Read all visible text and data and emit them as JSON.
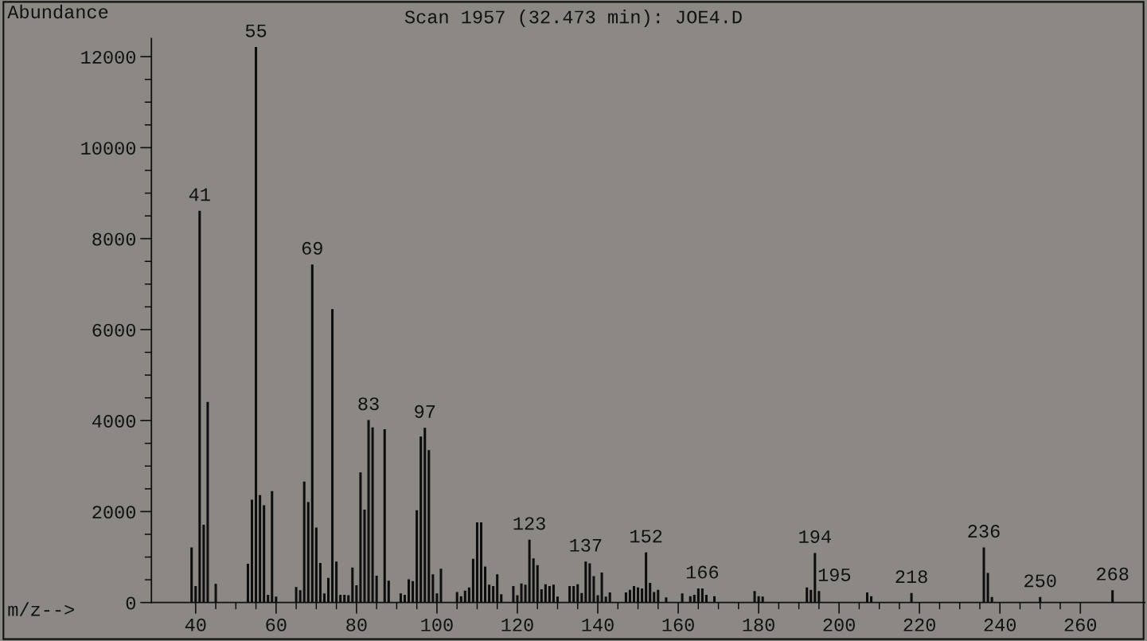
{
  "chart_data": {
    "type": "bar",
    "title": "Scan 1957 (32.473 min): JOE4.D",
    "xlabel": "m/z-->",
    "ylabel": "Abundance",
    "x": [
      39,
      40,
      41,
      42,
      43,
      45,
      53,
      54,
      55,
      56,
      57,
      58,
      59,
      60,
      65,
      66,
      67,
      68,
      69,
      70,
      71,
      72,
      73,
      74,
      75,
      76,
      77,
      78,
      79,
      80,
      81,
      82,
      83,
      84,
      85,
      87,
      88,
      91,
      92,
      93,
      94,
      95,
      96,
      97,
      98,
      99,
      100,
      101,
      105,
      106,
      107,
      108,
      109,
      110,
      111,
      112,
      113,
      114,
      115,
      116,
      119,
      120,
      121,
      122,
      123,
      124,
      125,
      126,
      127,
      128,
      129,
      130,
      133,
      134,
      135,
      136,
      137,
      138,
      139,
      140,
      141,
      142,
      143,
      147,
      148,
      149,
      150,
      151,
      152,
      153,
      154,
      155,
      157,
      161,
      163,
      164,
      165,
      166,
      167,
      169,
      179,
      180,
      181,
      192,
      193,
      194,
      195,
      207,
      208,
      218,
      236,
      237,
      238,
      250,
      268
    ],
    "values": [
      1200,
      350,
      8600,
      1700,
      4400,
      400,
      840,
      2250,
      12200,
      2350,
      2130,
      160,
      2440,
      120,
      330,
      260,
      2650,
      2200,
      7420,
      1640,
      860,
      190,
      530,
      6440,
      890,
      160,
      160,
      150,
      760,
      370,
      2850,
      2030,
      4000,
      3840,
      580,
      3800,
      470,
      190,
      160,
      500,
      460,
      2020,
      3640,
      3830,
      3340,
      610,
      190,
      730,
      220,
      130,
      250,
      320,
      950,
      1750,
      1750,
      780,
      380,
      350,
      610,
      170,
      350,
      150,
      410,
      380,
      1370,
      960,
      810,
      280,
      390,
      350,
      380,
      120,
      350,
      350,
      390,
      200,
      890,
      850,
      570,
      150,
      650,
      120,
      210,
      210,
      270,
      350,
      320,
      300,
      1090,
      420,
      220,
      270,
      100,
      190,
      130,
      160,
      300,
      300,
      160,
      130,
      240,
      130,
      120,
      320,
      270,
      1080,
      240,
      210,
      130,
      200,
      1200,
      640,
      110,
      110,
      260
    ],
    "color": "#0d0d0d",
    "xlim": [
      29,
      276
    ],
    "xticks": [
      40,
      60,
      80,
      100,
      120,
      140,
      160,
      180,
      200,
      220,
      240,
      260
    ],
    "ylim": [
      0,
      12400
    ],
    "yticks": [
      0,
      2000,
      4000,
      6000,
      8000,
      10000,
      12000
    ],
    "annotations": [
      {
        "text": "41",
        "x": 41,
        "y": 8600
      },
      {
        "text": "55",
        "x": 55,
        "y": 12200
      },
      {
        "text": "69",
        "x": 69,
        "y": 7420
      },
      {
        "text": "83",
        "x": 83,
        "y": 4000
      },
      {
        "text": "97",
        "x": 97,
        "y": 3830
      },
      {
        "text": "123",
        "x": 123,
        "y": 1370
      },
      {
        "text": "137",
        "x": 137,
        "y": 890
      },
      {
        "text": "152",
        "x": 152,
        "y": 1090
      },
      {
        "text": "166",
        "x": 166,
        "y": 300
      },
      {
        "text": "194",
        "x": 194,
        "y": 1080
      },
      {
        "text": "195",
        "x": 195,
        "y": 240
      },
      {
        "text": "218",
        "x": 218,
        "y": 200
      },
      {
        "text": "236",
        "x": 236,
        "y": 1200
      },
      {
        "text": "250",
        "x": 250,
        "y": 110
      },
      {
        "text": "268",
        "x": 268,
        "y": 260
      }
    ]
  }
}
